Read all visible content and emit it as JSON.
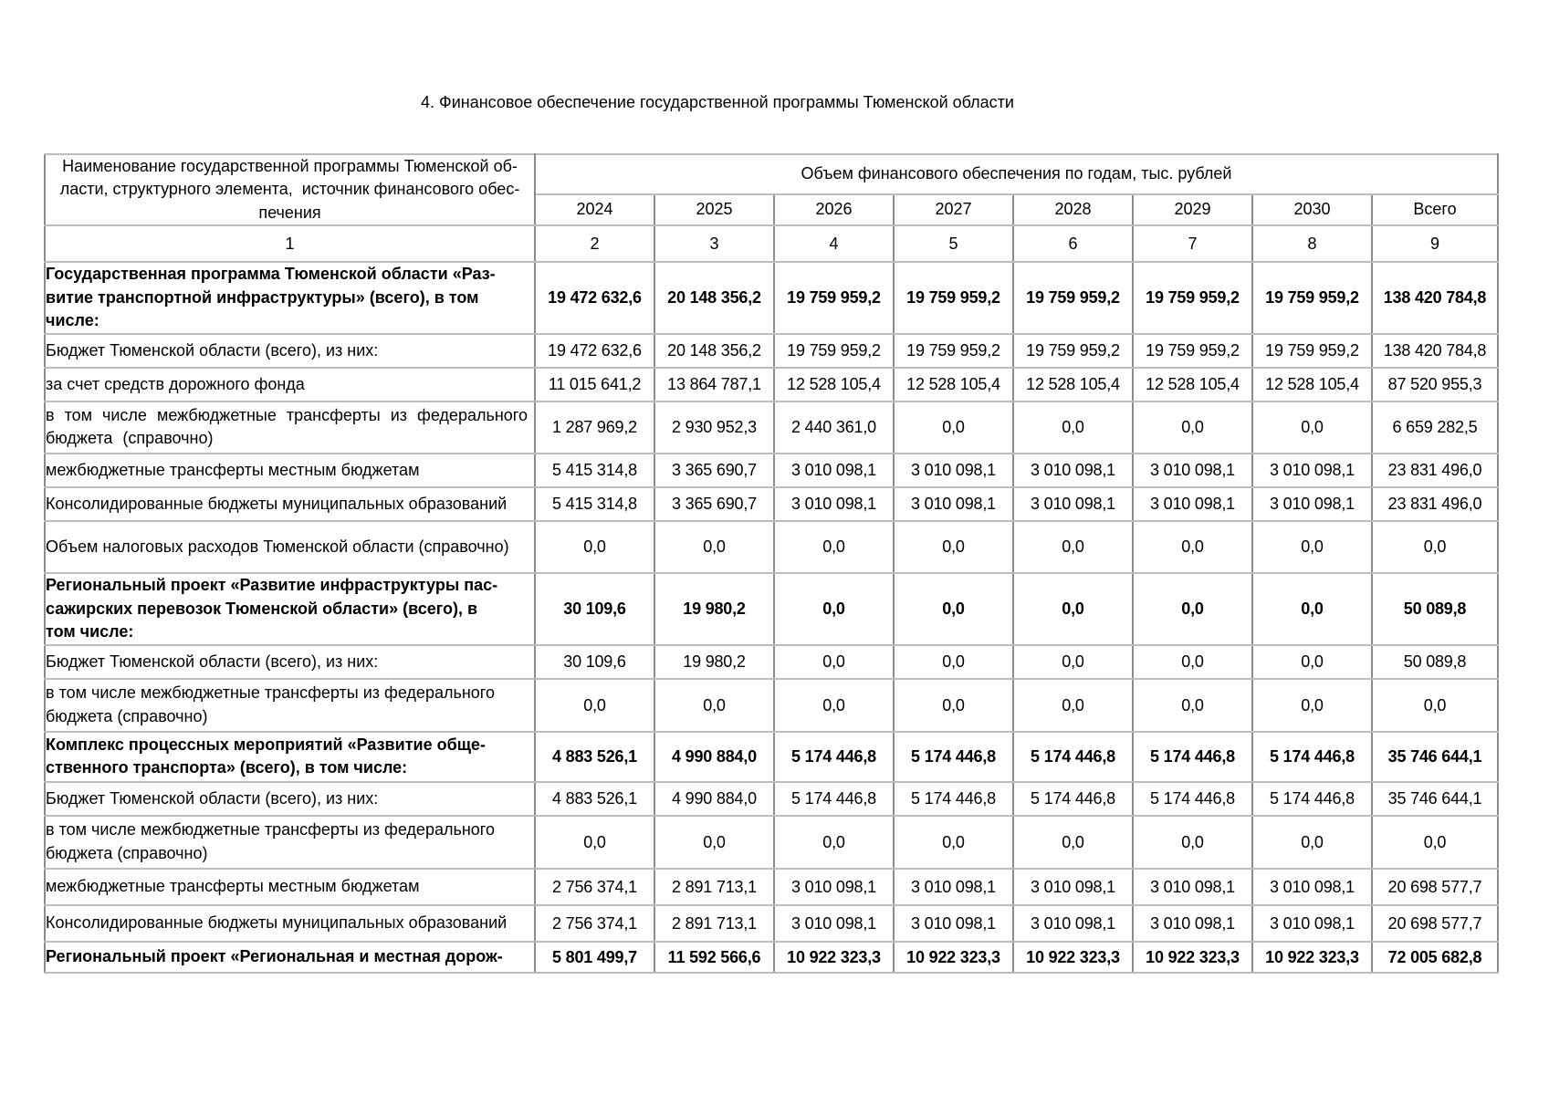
{
  "page": {
    "title": "4. Финансовое обеспечение государственной программы Тюменской области"
  },
  "table": {
    "header": {
      "name_column": "Наименование государственной программы Тюменской об-\nласти, структурного элемента,  источник финансового обес-\nпечения",
      "volume_title": "Объем финансового обеспечения по годам, тыс. рублей",
      "years": [
        "2024",
        "2025",
        "2026",
        "2027",
        "2028",
        "2029",
        "2030"
      ],
      "total_label": "Всего",
      "column_numbers": [
        "1",
        "2",
        "3",
        "4",
        "5",
        "6",
        "7",
        "8",
        "9"
      ]
    },
    "rows": [
      {
        "label": "Государственная программа Тюменской области «Раз-\nвитие транспортной инфраструктуры» (всего), в том\nчисле:",
        "bold": true,
        "values": [
          "19 472 632,6",
          "20 148 356,2",
          "19 759 959,2",
          "19 759 959,2",
          "19 759 959,2",
          "19 759 959,2",
          "19 759 959,2",
          "138 420 784,8"
        ]
      },
      {
        "label": "Бюджет Тюменской области (всего), из них:",
        "bold": false,
        "values": [
          "19 472 632,6",
          "20 148 356,2",
          "19 759 959,2",
          "19 759 959,2",
          "19 759 959,2",
          "19 759 959,2",
          "19 759 959,2",
          "138 420 784,8"
        ]
      },
      {
        "label": "за счет средств дорожного фонда",
        "bold": false,
        "values": [
          "11 015 641,2",
          "13 864 787,1",
          "12 528 105,4",
          "12 528 105,4",
          "12 528 105,4",
          "12 528 105,4",
          "12 528 105,4",
          "87 520 955,3"
        ]
      },
      {
        "label": "в том числе межбюджетные трансферты из федерального бюджета (справочно)",
        "bold": false,
        "values": [
          "1 287 969,2",
          "2 930 952,3",
          "2 440 361,0",
          "0,0",
          "0,0",
          "0,0",
          "0,0",
          "6 659 282,5"
        ]
      },
      {
        "label": "межбюджетные трансферты местным бюджетам",
        "bold": false,
        "values": [
          "5 415 314,8",
          "3 365 690,7",
          "3 010 098,1",
          "3 010 098,1",
          "3 010 098,1",
          "3 010 098,1",
          "3 010 098,1",
          "23 831 496,0"
        ]
      },
      {
        "label": "Консолидированные бюджеты муниципальных образований",
        "bold": false,
        "values": [
          "5 415 314,8",
          "3 365 690,7",
          "3 010 098,1",
          "3 010 098,1",
          "3 010 098,1",
          "3 010 098,1",
          "3 010 098,1",
          "23 831 496,0"
        ]
      },
      {
        "label": "Объем налоговых расходов Тюменской области (справочно)",
        "bold": false,
        "values": [
          "0,0",
          "0,0",
          "0,0",
          "0,0",
          "0,0",
          "0,0",
          "0,0",
          "0,0"
        ]
      },
      {
        "label": "Региональный проект «Развитие инфраструктуры пас-\nсажирских перевозок Тюменской области» (всего), в\nтом числе:",
        "bold": true,
        "values": [
          "30 109,6",
          "19 980,2",
          "0,0",
          "0,0",
          "0,0",
          "0,0",
          "0,0",
          "50 089,8"
        ]
      },
      {
        "label": "Бюджет Тюменской области (всего), из них:",
        "bold": false,
        "values": [
          "30 109,6",
          "19 980,2",
          "0,0",
          "0,0",
          "0,0",
          "0,0",
          "0,0",
          "50 089,8"
        ]
      },
      {
        "label": "в том числе межбюджетные трансферты из федерального бюджета (справочно)",
        "bold": false,
        "values": [
          "0,0",
          "0,0",
          "0,0",
          "0,0",
          "0,0",
          "0,0",
          "0,0",
          "0,0"
        ]
      },
      {
        "label": "Комплекс процессных мероприятий «Развитие обще-\nственного транспорта» (всего), в том числе:",
        "bold": true,
        "values": [
          "4 883 526,1",
          "4 990 884,0",
          "5 174 446,8",
          "5 174 446,8",
          "5 174 446,8",
          "5 174 446,8",
          "5 174 446,8",
          "35 746 644,1"
        ]
      },
      {
        "label": "Бюджет Тюменской области (всего), из них:",
        "bold": false,
        "values": [
          "4 883 526,1",
          "4 990 884,0",
          "5 174 446,8",
          "5 174 446,8",
          "5 174 446,8",
          "5 174 446,8",
          "5 174 446,8",
          "35 746 644,1"
        ]
      },
      {
        "label": "в том числе межбюджетные трансферты из федерального бюджета (справочно)",
        "bold": false,
        "values": [
          "0,0",
          "0,0",
          "0,0",
          "0,0",
          "0,0",
          "0,0",
          "0,0",
          "0,0"
        ]
      },
      {
        "label": "межбюджетные трансферты местным бюджетам",
        "bold": false,
        "values": [
          "2 756 374,1",
          "2 891 713,1",
          "3 010 098,1",
          "3 010 098,1",
          "3 010 098,1",
          "3 010 098,1",
          "3 010 098,1",
          "20 698 577,7"
        ]
      },
      {
        "label": "Консолидированные бюджеты муниципальных образований",
        "bold": false,
        "values": [
          "2 756 374,1",
          "2 891 713,1",
          "3 010 098,1",
          "3 010 098,1",
          "3 010 098,1",
          "3 010 098,1",
          "3 010 098,1",
          "20 698 577,7"
        ]
      },
      {
        "label": "Региональный проект «Региональная и местная дорож-",
        "bold": true,
        "values": [
          "5 801 499,7",
          "11 592 566,6",
          "10 922 323,3",
          "10 922 323,3",
          "10 922 323,3",
          "10 922 323,3",
          "10 922 323,3",
          "72 005 682,8"
        ]
      }
    ]
  }
}
